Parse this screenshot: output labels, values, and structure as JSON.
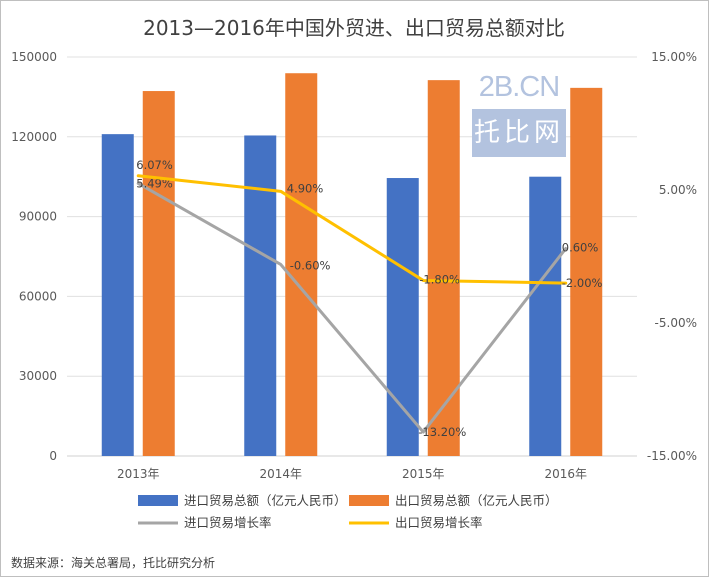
{
  "chart_data": {
    "type": "bar+line",
    "title": "2013—2016年中国外贸进、出口贸易总额对比",
    "categories": [
      "2013年",
      "2014年",
      "2015年",
      "2016年"
    ],
    "left_axis": {
      "min": 0,
      "max": 150000,
      "ticks": [
        "0",
        "30000",
        "60000",
        "90000",
        "120000",
        "150000"
      ]
    },
    "right_axis": {
      "min": -15,
      "max": 15,
      "ticks": [
        "-15.00%",
        "-5.00%",
        "5.00%",
        "15.00%"
      ]
    },
    "bar_series": [
      {
        "name": "进口贸易总额（亿元人民币）",
        "color": "#4472c4",
        "values": [
          121000,
          120500,
          104500,
          105000
        ]
      },
      {
        "name": "出口贸易总额（亿元人民币）",
        "color": "#ed7d31",
        "values": [
          137200,
          143900,
          141300,
          138400
        ]
      }
    ],
    "line_series": [
      {
        "name": "进口贸易增长率",
        "color": "#a5a5a5",
        "values": [
          5.49,
          -0.6,
          -13.2,
          0.6
        ],
        "labels": [
          "5.49%",
          "-0.60%",
          "-13.20%",
          "0.60%"
        ]
      },
      {
        "name": "出口贸易增长率",
        "color": "#ffc000",
        "values": [
          6.07,
          4.9,
          -1.8,
          -2.0
        ],
        "labels": [
          "6.07%",
          "4.90%",
          "-1.80%",
          "-2.00%"
        ]
      }
    ]
  },
  "watermark": {
    "top": "2B.CN",
    "bottom": "托比网"
  },
  "source": "数据来源：海关总署局，托比研究分析"
}
